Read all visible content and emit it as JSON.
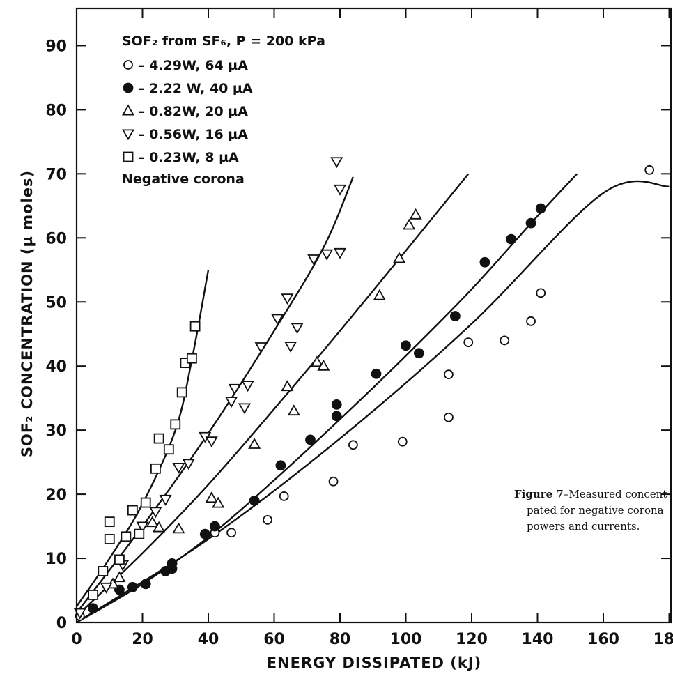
{
  "chart_data": {
    "type": "scatter",
    "xlabel": "ENERGY DISSIPATED (kJ)",
    "ylabel": "SOF₂ CONCENTRATION (µ moles)",
    "xlim": [
      0,
      180
    ],
    "ylim": [
      0,
      95
    ],
    "x_ticks": [
      "0",
      "20",
      "40",
      "60",
      "80",
      "100",
      "120",
      "140",
      "160",
      "180"
    ],
    "y_ticks": [
      "0",
      "10",
      "20",
      "30",
      "40",
      "50",
      "60",
      "70",
      "80",
      "90"
    ],
    "legend_title": "SOF₂ from SF₆, P = 200 kPa",
    "legend_footer": "Negative corona",
    "legend_position": "top-left",
    "series": [
      {
        "name": "4.29W, 64 µA",
        "marker": "circle-open",
        "points": [
          [
            1,
            1
          ],
          [
            42,
            14
          ],
          [
            47,
            14
          ],
          [
            58,
            16
          ],
          [
            63,
            19.7
          ],
          [
            78,
            22
          ],
          [
            84,
            27.7
          ],
          [
            99,
            28.2
          ],
          [
            113,
            32
          ],
          [
            113,
            38.7
          ],
          [
            119,
            43.7
          ],
          [
            130,
            44
          ],
          [
            138,
            47
          ],
          [
            141,
            51.4
          ],
          [
            174,
            70.6
          ]
        ],
        "fit": [
          [
            0,
            0
          ],
          [
            40,
            13
          ],
          [
            80,
            28.7
          ],
          [
            120,
            46.6
          ],
          [
            160,
            67
          ],
          [
            180,
            68
          ]
        ]
      },
      {
        "name": "2.22 W, 40 µA",
        "marker": "circle-filled",
        "points": [
          [
            5,
            2.2
          ],
          [
            13,
            5.1
          ],
          [
            17,
            5.5
          ],
          [
            21,
            6
          ],
          [
            27,
            8
          ],
          [
            29,
            8.4
          ],
          [
            29,
            9.2
          ],
          [
            39,
            13.8
          ],
          [
            42,
            15
          ],
          [
            54,
            19
          ],
          [
            62,
            24.5
          ],
          [
            71,
            28.5
          ],
          [
            79,
            32.2
          ],
          [
            79,
            34
          ],
          [
            91,
            38.8
          ],
          [
            100,
            43.2
          ],
          [
            104,
            42
          ],
          [
            115,
            47.8
          ],
          [
            124,
            56.2
          ],
          [
            132,
            59.8
          ],
          [
            138,
            62.3
          ],
          [
            141,
            64.6
          ]
        ],
        "fit": [
          [
            0,
            0
          ],
          [
            20,
            6
          ],
          [
            40,
            13.3
          ],
          [
            60,
            22.2
          ],
          [
            80,
            31.7
          ],
          [
            100,
            41.6
          ],
          [
            120,
            52
          ],
          [
            140,
            63.4
          ],
          [
            152,
            70
          ]
        ]
      },
      {
        "name": "0.82W, 20 µA",
        "marker": "triangle-up",
        "points": [
          [
            11,
            6
          ],
          [
            13,
            7
          ],
          [
            23,
            15.6
          ],
          [
            25,
            14.8
          ],
          [
            31,
            14.6
          ],
          [
            41,
            19.4
          ],
          [
            43,
            18.6
          ],
          [
            54,
            27.8
          ],
          [
            64,
            36.8
          ],
          [
            66,
            33
          ],
          [
            73,
            40.6
          ],
          [
            75,
            40
          ],
          [
            92,
            51
          ],
          [
            98,
            56.8
          ],
          [
            101,
            62
          ],
          [
            103,
            63.6
          ]
        ],
        "fit": [
          [
            0,
            1
          ],
          [
            20,
            10.8
          ],
          [
            40,
            21.5
          ],
          [
            60,
            33.3
          ],
          [
            80,
            45.5
          ],
          [
            100,
            58
          ],
          [
            119,
            70
          ]
        ]
      },
      {
        "name": "0.56W, 16 µA",
        "marker": "triangle-down",
        "points": [
          [
            1,
            1.5
          ],
          [
            9,
            5.5
          ],
          [
            14,
            9
          ],
          [
            20,
            15
          ],
          [
            24,
            17.3
          ],
          [
            27,
            19.2
          ],
          [
            31,
            24.2
          ],
          [
            34,
            24.8
          ],
          [
            39,
            29
          ],
          [
            41,
            28.3
          ],
          [
            47,
            34.5
          ],
          [
            48,
            36.5
          ],
          [
            51,
            33.5
          ],
          [
            52,
            37
          ],
          [
            56,
            43
          ],
          [
            61,
            47.4
          ],
          [
            64,
            50.6
          ],
          [
            65,
            43.1
          ],
          [
            67,
            46
          ],
          [
            72,
            56.7
          ],
          [
            76,
            57.5
          ],
          [
            80,
            57.7
          ],
          [
            79,
            71.9
          ],
          [
            80,
            67.6
          ]
        ],
        "fit": [
          [
            0,
            1.5
          ],
          [
            20,
            15
          ],
          [
            40,
            29.5
          ],
          [
            60,
            45.5
          ],
          [
            75,
            58.5
          ],
          [
            84,
            69.5
          ]
        ]
      },
      {
        "name": "0.23W, 8 µA",
        "marker": "square-open",
        "points": [
          [
            5,
            4.3
          ],
          [
            8,
            8
          ],
          [
            10,
            13
          ],
          [
            10,
            15.7
          ],
          [
            13,
            9.8
          ],
          [
            15,
            13.4
          ],
          [
            17,
            17.5
          ],
          [
            19,
            13.8
          ],
          [
            21,
            18.7
          ],
          [
            24,
            24
          ],
          [
            25,
            28.7
          ],
          [
            28,
            27
          ],
          [
            30,
            30.9
          ],
          [
            32,
            35.9
          ],
          [
            33,
            40.5
          ],
          [
            35,
            41.2
          ],
          [
            36,
            46.2
          ]
        ],
        "fit": [
          [
            0,
            2.5
          ],
          [
            10,
            10
          ],
          [
            20,
            18.5
          ],
          [
            30,
            30
          ],
          [
            35,
            41
          ],
          [
            40,
            55
          ]
        ]
      }
    ]
  },
  "caption": {
    "label": "Figure 7",
    "line1": "–Measured concent",
    "line2": "pated for negative corona",
    "line3": "powers and currents."
  }
}
